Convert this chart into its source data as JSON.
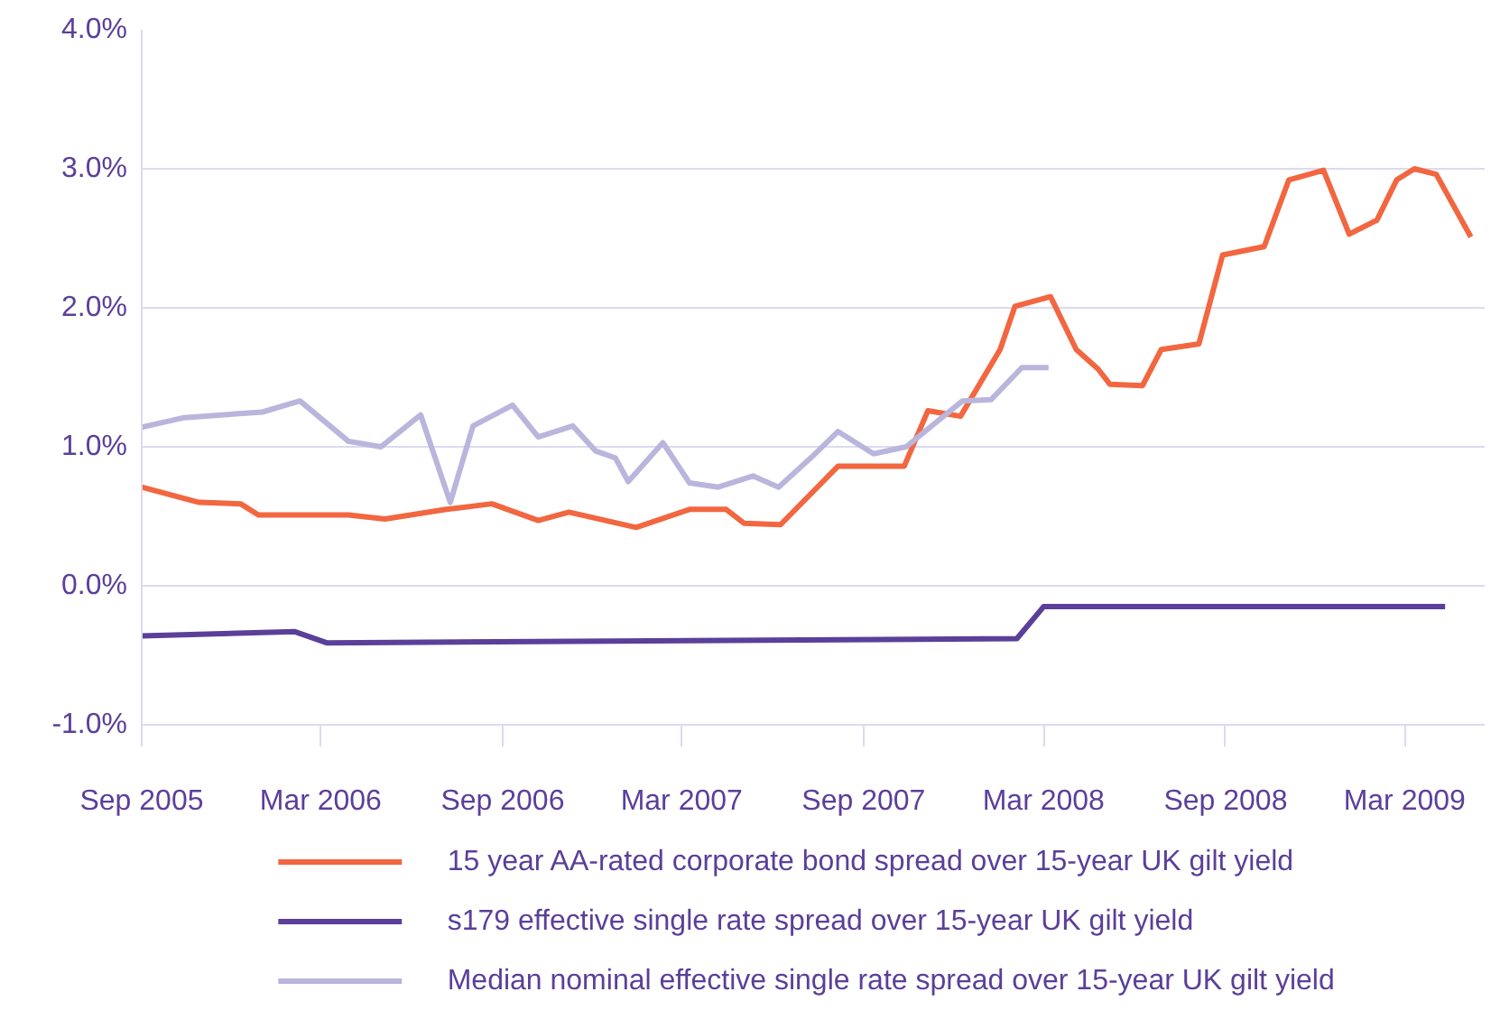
{
  "chart_data": {
    "type": "line",
    "xlim": [
      "2005-09-01",
      "2009-05-21"
    ],
    "ylim": [
      -1,
      4
    ],
    "xticks": [
      {
        "value": "2005-09",
        "label": "Sep 2005"
      },
      {
        "value": "2006-03",
        "label": "Mar 2006"
      },
      {
        "value": "2006-09",
        "label": "Sep 2006"
      },
      {
        "value": "2007-03",
        "label": "Mar 2007"
      },
      {
        "value": "2007-09",
        "label": "Sep 2007"
      },
      {
        "value": "2008-03",
        "label": "Mar 2008"
      },
      {
        "value": "2008-09",
        "label": "Sep 2008"
      },
      {
        "value": "2009-03",
        "label": "Mar 2009"
      }
    ],
    "yticks": [
      {
        "value": -1,
        "label": "-1.0%"
      },
      {
        "value": 0,
        "label": "0.0%"
      },
      {
        "value": 1,
        "label": "1.0%"
      },
      {
        "value": 2,
        "label": "2.0%"
      },
      {
        "value": 3,
        "label": "3.0%"
      },
      {
        "value": 4,
        "label": "4.0%"
      }
    ],
    "grid": "y",
    "legend": "bottom",
    "line_style": "solid",
    "series": [
      {
        "name": "15 year AA-rated corporate bond spread over 15-year UK gilt yield",
        "color": "#f26640",
        "x": [
          "2005-09-01",
          "2005-10-29",
          "2005-12-10",
          "2005-12-28",
          "2006-03-29",
          "2006-05-05",
          "2006-07-06",
          "2006-08-21",
          "2006-10-07",
          "2006-11-07",
          "2007-01-14",
          "2007-03-09",
          "2007-04-15",
          "2007-05-03",
          "2007-06-09",
          "2007-08-06",
          "2007-10-12",
          "2007-11-05",
          "2007-12-08",
          "2008-01-17",
          "2008-02-01",
          "2008-03-08",
          "2008-04-03",
          "2008-04-25",
          "2008-05-07",
          "2008-06-09",
          "2008-06-28",
          "2008-08-05",
          "2008-08-29",
          "2008-10-10",
          "2008-11-04",
          "2008-12-09",
          "2009-01-04",
          "2009-02-01",
          "2009-02-21",
          "2009-03-11",
          "2009-04-02",
          "2009-05-07"
        ],
        "values": [
          0.71,
          0.6,
          0.59,
          0.51,
          0.51,
          0.48,
          0.55,
          0.59,
          0.47,
          0.53,
          0.42,
          0.55,
          0.55,
          0.45,
          0.44,
          0.86,
          0.86,
          1.26,
          1.22,
          1.7,
          2.01,
          2.08,
          1.7,
          1.56,
          1.45,
          1.44,
          1.7,
          1.74,
          2.38,
          2.44,
          2.92,
          2.99,
          2.53,
          2.63,
          2.92,
          3.0,
          2.96,
          2.51
        ]
      },
      {
        "name": "s179 effective single rate spread over 15-year UK gilt yield",
        "color": "#5b3f99",
        "x": [
          "2005-09-01",
          "2006-02-03",
          "2006-03-07",
          "2008-02-03",
          "2008-03-01",
          "2009-04-11"
        ],
        "values": [
          -0.36,
          -0.33,
          -0.41,
          -0.38,
          -0.15,
          -0.15
        ]
      },
      {
        "name": "Median nominal effective single rate spread over 15-year UK gilt yield",
        "color": "#b9b5dc",
        "x": [
          "2005-09-01",
          "2005-10-14",
          "2006-01-01",
          "2006-02-08",
          "2006-03-29",
          "2006-05-01",
          "2006-06-10",
          "2006-07-10",
          "2006-08-02",
          "2006-09-11",
          "2006-10-07",
          "2006-11-11",
          "2006-12-04",
          "2006-12-24",
          "2007-01-06",
          "2007-02-10",
          "2007-03-09",
          "2007-04-07",
          "2007-05-12",
          "2007-06-07",
          "2007-07-11",
          "2007-08-06",
          "2007-09-11",
          "2007-10-14",
          "2007-12-10",
          "2008-01-08",
          "2008-02-08",
          "2008-03-06"
        ],
        "values": [
          1.14,
          1.21,
          1.25,
          1.33,
          1.04,
          1.0,
          1.23,
          0.6,
          1.15,
          1.3,
          1.07,
          1.15,
          0.97,
          0.92,
          0.75,
          1.03,
          0.74,
          0.71,
          0.79,
          0.71,
          0.93,
          1.11,
          0.95,
          1.0,
          1.33,
          1.34,
          1.57,
          1.57
        ]
      }
    ]
  }
}
